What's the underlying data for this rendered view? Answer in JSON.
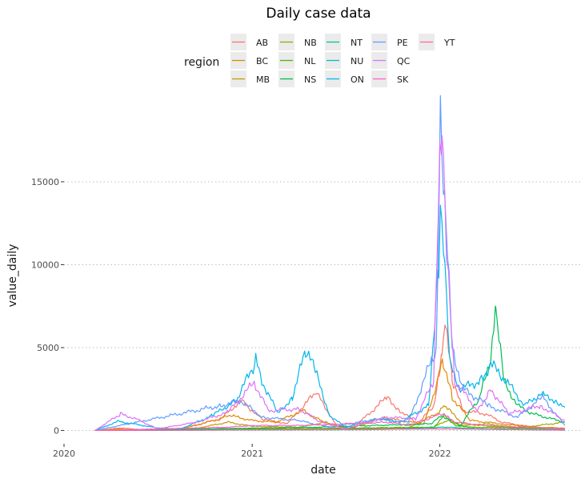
{
  "chart_data": {
    "type": "line",
    "title": "Daily case data",
    "xlabel": "date",
    "ylabel": "value_daily",
    "xlim": [
      "2020-01-01",
      "2022-10-01"
    ],
    "ylim": [
      -800,
      19200
    ],
    "x_ticks": [
      "2020-01-01",
      "2021-01-01",
      "2022-01-01"
    ],
    "x_tick_labels": [
      "2020",
      "2021",
      "2022"
    ],
    "y_ticks": [
      0,
      5000,
      10000,
      15000
    ],
    "y_tick_labels": [
      "0",
      "5000",
      "10000",
      "15000"
    ],
    "grid": "horizontal-dotted",
    "legend": {
      "title": "region",
      "position": "top",
      "columns": [
        [
          "AB",
          "BC",
          "MB"
        ],
        [
          "NB",
          "NL",
          "NS"
        ],
        [
          "NT",
          "NU",
          "ON"
        ],
        [
          "PE",
          "QC",
          "SK"
        ],
        [
          "YT"
        ]
      ]
    },
    "series": [
      {
        "name": "AB",
        "color": "#F8766D",
        "points": [
          [
            "2020-03-01",
            0
          ],
          [
            "2020-04-20",
            150
          ],
          [
            "2020-06-01",
            50
          ],
          [
            "2020-08-15",
            100
          ],
          [
            "2020-11-01",
            700
          ],
          [
            "2020-12-10",
            1800
          ],
          [
            "2021-01-20",
            700
          ],
          [
            "2021-03-10",
            400
          ],
          [
            "2021-05-05",
            2300
          ],
          [
            "2021-06-15",
            250
          ],
          [
            "2021-07-15",
            100
          ],
          [
            "2021-09-20",
            2000
          ],
          [
            "2021-10-15",
            1200
          ],
          [
            "2021-11-20",
            400
          ],
          [
            "2021-12-20",
            1500
          ],
          [
            "2022-01-05",
            4500
          ],
          [
            "2022-01-12",
            6800
          ],
          [
            "2022-01-25",
            3000
          ],
          [
            "2022-02-15",
            1200
          ],
          [
            "2022-04-01",
            1000
          ],
          [
            "2022-05-01",
            500
          ],
          [
            "2022-07-01",
            200
          ],
          [
            "2022-09-01",
            100
          ]
        ]
      },
      {
        "name": "BC",
        "color": "#E38900",
        "points": [
          [
            "2020-03-01",
            0
          ],
          [
            "2020-04-15",
            80
          ],
          [
            "2020-06-01",
            20
          ],
          [
            "2020-08-20",
            100
          ],
          [
            "2020-11-20",
            900
          ],
          [
            "2021-01-01",
            600
          ],
          [
            "2021-02-15",
            500
          ],
          [
            "2021-04-10",
            1200
          ],
          [
            "2021-05-20",
            500
          ],
          [
            "2021-07-10",
            100
          ],
          [
            "2021-09-15",
            800
          ],
          [
            "2021-10-15",
            600
          ],
          [
            "2021-12-01",
            400
          ],
          [
            "2021-12-28",
            3000
          ],
          [
            "2022-01-08",
            4200
          ],
          [
            "2022-01-25",
            2000
          ],
          [
            "2022-03-01",
            600
          ],
          [
            "2022-05-01",
            400
          ],
          [
            "2022-07-01",
            200
          ],
          [
            "2022-09-01",
            150
          ]
        ]
      },
      {
        "name": "MB",
        "color": "#C49A00",
        "points": [
          [
            "2020-03-01",
            0
          ],
          [
            "2020-09-01",
            50
          ],
          [
            "2020-11-15",
            500
          ],
          [
            "2021-01-01",
            250
          ],
          [
            "2021-04-01",
            200
          ],
          [
            "2021-05-25",
            500
          ],
          [
            "2021-07-01",
            100
          ],
          [
            "2021-11-01",
            150
          ],
          [
            "2021-12-25",
            1000
          ],
          [
            "2022-01-10",
            1500
          ],
          [
            "2022-02-15",
            400
          ],
          [
            "2022-05-01",
            200
          ],
          [
            "2022-09-01",
            100
          ]
        ]
      },
      {
        "name": "NB",
        "color": "#99A800",
        "points": [
          [
            "2020-03-01",
            0
          ],
          [
            "2021-01-20",
            50
          ],
          [
            "2021-09-15",
            100
          ],
          [
            "2021-12-20",
            200
          ],
          [
            "2022-01-15",
            600
          ],
          [
            "2022-02-15",
            300
          ],
          [
            "2022-04-01",
            400
          ],
          [
            "2022-06-01",
            150
          ],
          [
            "2022-09-01",
            500
          ]
        ]
      },
      {
        "name": "NL",
        "color": "#53B400",
        "points": [
          [
            "2020-03-01",
            0
          ],
          [
            "2021-02-15",
            100
          ],
          [
            "2021-12-20",
            200
          ],
          [
            "2022-01-10",
            900
          ],
          [
            "2022-02-01",
            300
          ],
          [
            "2022-03-01",
            200
          ],
          [
            "2022-09-01",
            100
          ]
        ]
      },
      {
        "name": "NS",
        "color": "#00BC56",
        "points": [
          [
            "2020-03-01",
            0
          ],
          [
            "2021-05-05",
            200
          ],
          [
            "2021-12-15",
            400
          ],
          [
            "2022-01-05",
            900
          ],
          [
            "2022-02-10",
            300
          ],
          [
            "2022-03-20",
            2000
          ],
          [
            "2022-04-10",
            4500
          ],
          [
            "2022-04-20",
            7500
          ],
          [
            "2022-05-05",
            3000
          ],
          [
            "2022-06-01",
            1500
          ],
          [
            "2022-07-01",
            1000
          ],
          [
            "2022-09-01",
            500
          ]
        ]
      },
      {
        "name": "NT",
        "color": "#00C094",
        "points": [
          [
            "2020-03-01",
            0
          ],
          [
            "2021-09-01",
            50
          ],
          [
            "2022-01-10",
            200
          ],
          [
            "2022-04-01",
            100
          ],
          [
            "2022-09-01",
            50
          ]
        ]
      },
      {
        "name": "NU",
        "color": "#00BFC4",
        "points": [
          [
            "2020-03-01",
            0
          ],
          [
            "2021-04-20",
            50
          ],
          [
            "2022-01-10",
            100
          ],
          [
            "2022-09-01",
            20
          ]
        ]
      },
      {
        "name": "ON",
        "color": "#00B6EB",
        "points": [
          [
            "2020-03-01",
            0
          ],
          [
            "2020-04-15",
            550
          ],
          [
            "2020-05-15",
            400
          ],
          [
            "2020-07-01",
            150
          ],
          [
            "2020-08-15",
            100
          ],
          [
            "2020-10-15",
            900
          ],
          [
            "2020-12-01",
            1800
          ],
          [
            "2021-01-08",
            4200
          ],
          [
            "2021-01-20",
            3000
          ],
          [
            "2021-02-20",
            1000
          ],
          [
            "2021-03-20",
            2000
          ],
          [
            "2021-04-15",
            4800
          ],
          [
            "2021-05-01",
            3800
          ],
          [
            "2021-06-01",
            900
          ],
          [
            "2021-07-01",
            200
          ],
          [
            "2021-09-01",
            700
          ],
          [
            "2021-10-15",
            500
          ],
          [
            "2021-12-10",
            1500
          ],
          [
            "2021-12-30",
            10000
          ],
          [
            "2022-01-02",
            14000
          ],
          [
            "2022-01-08",
            12000
          ],
          [
            "2022-01-20",
            4000
          ],
          [
            "2022-02-10",
            2500
          ],
          [
            "2022-03-20",
            3000
          ],
          [
            "2022-04-10",
            4000
          ],
          [
            "2022-05-10",
            3000
          ],
          [
            "2022-06-15",
            1500
          ],
          [
            "2022-07-15",
            2200
          ],
          [
            "2022-08-15",
            1800
          ],
          [
            "2022-09-01",
            1400
          ]
        ]
      },
      {
        "name": "PE",
        "color": "#619CFF",
        "points": [
          [
            "2020-03-01",
            0
          ],
          [
            "2020-11-01",
            1500
          ],
          [
            "2020-12-10",
            1800
          ],
          [
            "2021-01-20",
            800
          ],
          [
            "2021-04-01",
            600
          ],
          [
            "2021-06-01",
            200
          ],
          [
            "2021-09-01",
            700
          ],
          [
            "2021-11-01",
            500
          ],
          [
            "2021-12-25",
            5000
          ],
          [
            "2022-01-02",
            18400
          ],
          [
            "2022-01-10",
            14000
          ],
          [
            "2022-01-25",
            5000
          ],
          [
            "2022-02-15",
            2500
          ],
          [
            "2022-04-05",
            1500
          ],
          [
            "2022-06-01",
            800
          ],
          [
            "2022-07-20",
            2000
          ],
          [
            "2022-09-01",
            300
          ]
        ]
      },
      {
        "name": "QC",
        "color": "#DB72FB",
        "points": [
          [
            "2020-03-01",
            0
          ],
          [
            "2020-04-20",
            1000
          ],
          [
            "2020-05-20",
            700
          ],
          [
            "2020-07-01",
            100
          ],
          [
            "2020-09-15",
            500
          ],
          [
            "2020-11-15",
            1100
          ],
          [
            "2021-01-05",
            2900
          ],
          [
            "2021-02-01",
            1200
          ],
          [
            "2021-04-01",
            1300
          ],
          [
            "2021-05-15",
            500
          ],
          [
            "2021-07-01",
            100
          ],
          [
            "2021-09-20",
            800
          ],
          [
            "2021-11-15",
            700
          ],
          [
            "2021-12-20",
            3000
          ],
          [
            "2022-01-01",
            16000
          ],
          [
            "2022-01-05",
            17800
          ],
          [
            "2022-01-15",
            10000
          ],
          [
            "2022-01-30",
            3000
          ],
          [
            "2022-03-15",
            1200
          ],
          [
            "2022-04-10",
            2500
          ],
          [
            "2022-05-15",
            1000
          ],
          [
            "2022-07-15",
            1500
          ],
          [
            "2022-09-01",
            600
          ]
        ]
      },
      {
        "name": "SK",
        "color": "#FF61C3",
        "points": [
          [
            "2020-03-01",
            0
          ],
          [
            "2020-11-15",
            200
          ],
          [
            "2021-01-01",
            300
          ],
          [
            "2021-04-01",
            300
          ],
          [
            "2021-09-25",
            500
          ],
          [
            "2021-11-01",
            300
          ],
          [
            "2022-01-05",
            1000
          ],
          [
            "2022-02-01",
            500
          ],
          [
            "2022-04-01",
            300
          ],
          [
            "2022-09-01",
            100
          ]
        ]
      },
      {
        "name": "YT",
        "color": "#FF67A4",
        "points": [
          [
            "2020-03-01",
            0
          ],
          [
            "2021-06-20",
            50
          ],
          [
            "2022-01-10",
            100
          ],
          [
            "2022-09-01",
            20
          ]
        ]
      }
    ]
  }
}
